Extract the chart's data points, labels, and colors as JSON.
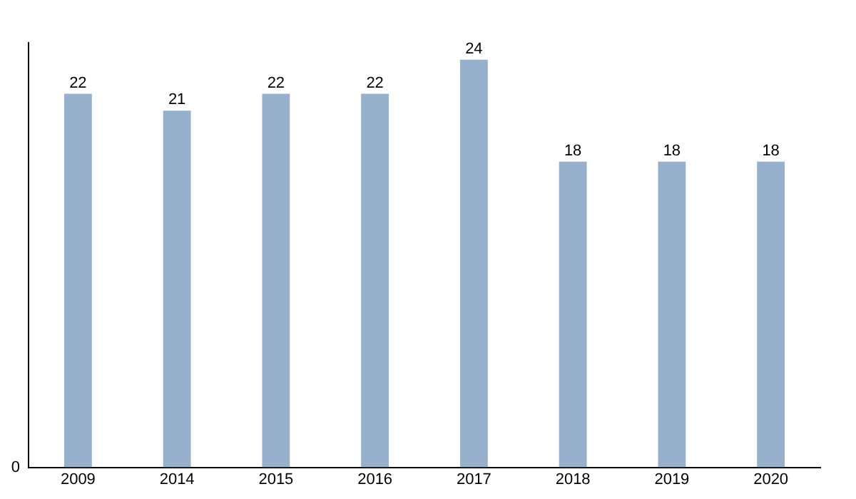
{
  "chart_data": {
    "type": "bar",
    "categories": [
      "2009",
      "2014",
      "2015",
      "2016",
      "2017",
      "2018",
      "2019",
      "2020"
    ],
    "values": [
      22,
      21,
      22,
      22,
      24,
      18,
      18,
      18
    ],
    "color": "#97b1cc",
    "ylim": [
      0,
      25
    ],
    "data_labels": true,
    "annotations": [
      "0"
    ]
  }
}
